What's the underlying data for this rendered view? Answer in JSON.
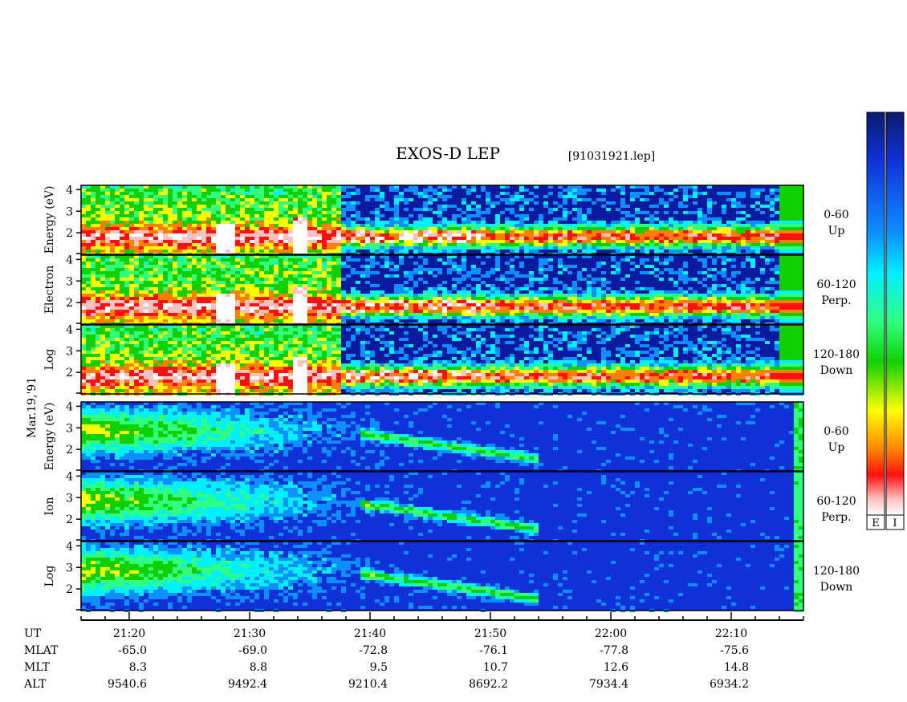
{
  "chart_data": {
    "type": "heatmap",
    "title": "EXOS-D LEP",
    "file": "[91031921.lep]",
    "date_label": "Mar.19,'91",
    "y_ticks": [
      "4",
      "3",
      "2"
    ],
    "ylim": [
      1,
      4.2
    ],
    "groups": [
      {
        "id": "electron",
        "ylabel": "Log Electron Energy (eV)",
        "ylabel_words": [
          "Log",
          "Electron",
          "Energy (eV)"
        ],
        "panels": [
          {
            "angle": "0-60",
            "direction": "Up"
          },
          {
            "angle": "60-120",
            "direction": "Perp."
          },
          {
            "angle": "120-180",
            "direction": "Down"
          }
        ]
      },
      {
        "id": "ion",
        "ylabel": "Log Ion Energy (eV)",
        "ylabel_words": [
          "Log",
          "Ion",
          "Energy (eV)"
        ],
        "panels": [
          {
            "angle": "0-60",
            "direction": "Up"
          },
          {
            "angle": "60-120",
            "direction": "Perp."
          },
          {
            "angle": "120-180",
            "direction": "Down"
          }
        ]
      }
    ],
    "x_range_ut": [
      "21:16",
      "22:16"
    ],
    "x_row_labels": [
      "UT",
      "MLAT",
      "MLT",
      "ALT"
    ],
    "x_ticks": [
      {
        "ut": "21:20",
        "mlat": "-65.0",
        "mlt": "8.3",
        "alt": "9540.6"
      },
      {
        "ut": "21:30",
        "mlat": "-69.0",
        "mlt": "8.8",
        "alt": "9492.4"
      },
      {
        "ut": "21:40",
        "mlat": "-72.8",
        "mlt": "9.5",
        "alt": "9210.4"
      },
      {
        "ut": "21:50",
        "mlat": "-76.1",
        "mlt": "10.7",
        "alt": "8692.2"
      },
      {
        "ut": "22:00",
        "mlat": "-77.8",
        "mlt": "12.6",
        "alt": "7934.4"
      },
      {
        "ut": "22:10",
        "mlat": "-75.6",
        "mlt": "14.8",
        "alt": "6934.2"
      }
    ],
    "colorbars": [
      {
        "label": "E"
      },
      {
        "label": "I"
      }
    ],
    "colorscale": [
      "#0a1a6e",
      "#1030d8",
      "#0c90ff",
      "#00f0ff",
      "#30ff80",
      "#10d000",
      "#ffff00",
      "#ff8000",
      "#ff1010",
      "#ffc0c0",
      "#ffffff"
    ]
  }
}
